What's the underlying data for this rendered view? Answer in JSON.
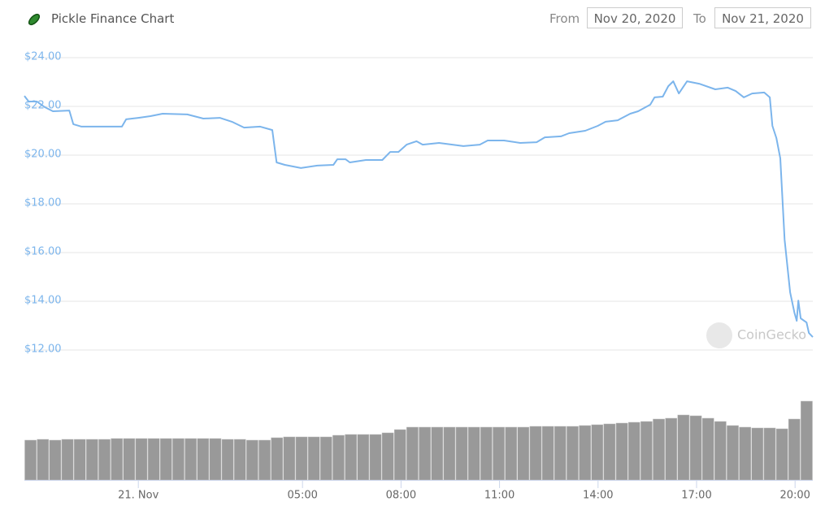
{
  "header": {
    "from_label": "From",
    "from_date": "Nov 20, 2020",
    "to_label": "To",
    "to_date": "Nov 21, 2020"
  },
  "watermark": "CoinGecko",
  "chart_data": [
    {
      "type": "line",
      "title": "Pickle Finance Chart",
      "color": "#7cb5ec",
      "grid": true,
      "x": [
        -3.47,
        -3.34,
        -3.09,
        -2.85,
        -2.6,
        -2.1,
        -1.98,
        -1.73,
        -0.5,
        -0.37,
        0,
        0.37,
        0.74,
        1.49,
        1.98,
        2.48,
        2.85,
        3.22,
        3.71,
        4.08,
        4.21,
        4.46,
        4.95,
        5.45,
        5.94,
        6.06,
        6.31,
        6.44,
        6.93,
        7.43,
        7.67,
        7.92,
        8.17,
        8.47,
        8.66,
        9.16,
        9.9,
        10.4,
        10.64,
        11.14,
        11.63,
        12.13,
        12.38,
        12.87,
        13.12,
        13.61,
        13.99,
        14.23,
        14.6,
        14.98,
        15.22,
        15.59,
        15.72,
        15.97,
        16.14,
        16.29,
        16.46,
        16.71,
        17.08,
        17.57,
        17.95,
        18.19,
        18.44,
        18.69,
        19.06,
        19.23,
        19.31,
        19.43,
        19.55,
        19.68,
        19.85,
        19.98,
        20.05,
        20.1,
        20.17,
        20.35,
        20.42,
        20.54
      ],
      "values": [
        22.43,
        22.2,
        22.2,
        21.97,
        21.8,
        21.83,
        21.27,
        21.17,
        21.17,
        21.47,
        21.53,
        21.6,
        21.7,
        21.67,
        21.5,
        21.53,
        21.37,
        21.13,
        21.17,
        21.03,
        19.7,
        19.6,
        19.47,
        19.57,
        19.6,
        19.83,
        19.83,
        19.7,
        19.8,
        19.8,
        20.13,
        20.13,
        20.43,
        20.57,
        20.43,
        20.5,
        20.37,
        20.43,
        20.6,
        20.6,
        20.5,
        20.53,
        20.73,
        20.77,
        20.9,
        21.0,
        21.2,
        21.37,
        21.43,
        21.7,
        21.8,
        22.07,
        22.37,
        22.4,
        22.83,
        23.03,
        22.53,
        23.03,
        22.93,
        22.7,
        22.77,
        22.63,
        22.37,
        22.53,
        22.57,
        22.37,
        21.2,
        20.7,
        19.87,
        16.53,
        14.37,
        13.53,
        13.2,
        14.03,
        13.3,
        13.13,
        12.7,
        12.53
      ],
      "xlim": [
        -3.47,
        20.54
      ],
      "ylim": [
        12,
        24
      ],
      "yticks": [
        {
          "value": 12,
          "label": "$12.00"
        },
        {
          "value": 14,
          "label": "$14.00"
        },
        {
          "value": 16,
          "label": "$16.00"
        },
        {
          "value": 18,
          "label": "$18.00"
        },
        {
          "value": 20,
          "label": "$20.00"
        },
        {
          "value": 22,
          "label": "$22.00"
        },
        {
          "value": 24,
          "label": "$24.00"
        }
      ],
      "xticks": [
        {
          "value": 0,
          "label": "21. Nov"
        },
        {
          "value": 5,
          "label": "05:00"
        },
        {
          "value": 8,
          "label": "08:00"
        },
        {
          "value": 11,
          "label": "11:00"
        },
        {
          "value": 14,
          "label": "14:00"
        },
        {
          "value": 17,
          "label": "17:00"
        },
        {
          "value": 20,
          "label": "20:00"
        }
      ]
    },
    {
      "type": "bar",
      "color": "#999999",
      "ylim": [
        0,
        100
      ],
      "values": [
        49,
        50,
        49,
        50,
        50,
        50,
        50,
        51,
        51,
        51,
        51,
        51,
        51,
        51,
        51,
        51,
        50,
        50,
        49,
        49,
        52,
        53,
        53,
        53,
        53,
        55,
        56,
        56,
        56,
        58,
        62,
        65,
        65,
        65,
        65,
        65,
        65,
        65,
        65,
        65,
        65,
        66,
        66,
        66,
        66,
        67,
        68,
        69,
        70,
        71,
        72,
        75,
        76,
        80,
        79,
        76,
        72,
        67,
        65,
        64,
        64,
        63,
        75,
        97
      ]
    }
  ]
}
